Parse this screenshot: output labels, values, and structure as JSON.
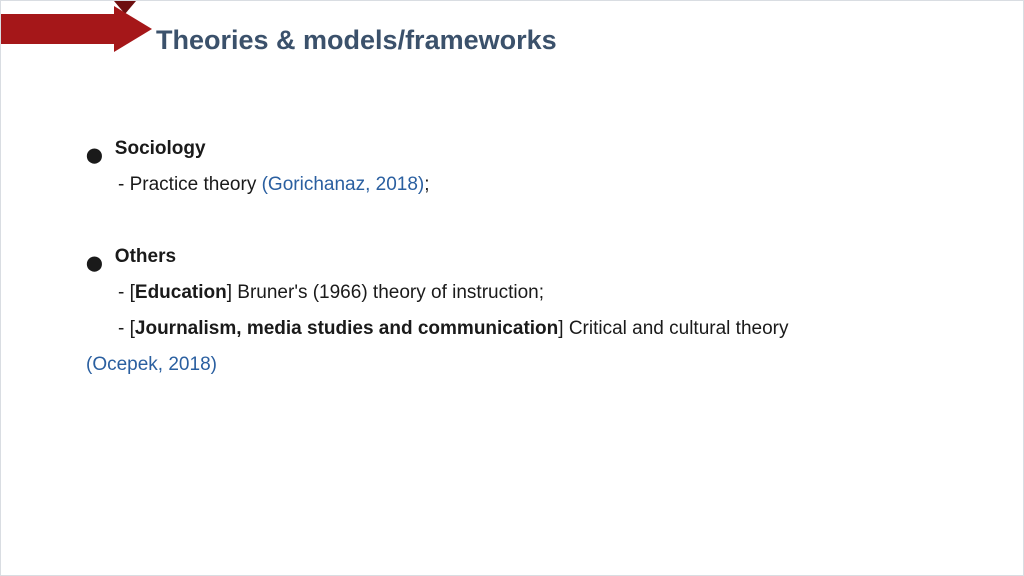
{
  "colors": {
    "title": "#3b516b",
    "text": "#1a1a1a",
    "link": "#2a5fa0",
    "arrow_bar": "#a51719",
    "arrow_head": "#a51719",
    "arrow_notch": "#6e0f10"
  },
  "title": "Theories & models/frameworks",
  "section1": {
    "heading": "Sociology",
    "item1_prefix": "- Practice theory ",
    "item1_link": "(Gorichanaz, 2018)",
    "item1_suffix": ";"
  },
  "section2": {
    "heading": "Others",
    "item1_prefix": "- [",
    "item1_bold": "Education",
    "item1_rest": "] Bruner's (1966) theory of instruction;",
    "item2_prefix": "- [",
    "item2_bold": "Journalism, media studies and communication",
    "item2_rest": "] Critical and cultural theory",
    "item2_link": "(Ocepek, 2018)"
  }
}
